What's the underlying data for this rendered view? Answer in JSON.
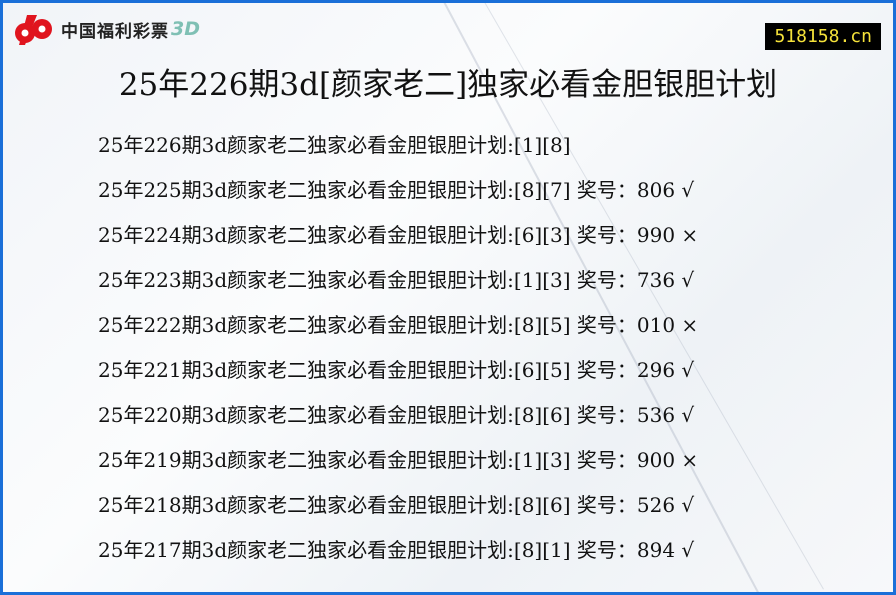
{
  "brand": {
    "logo_text": "中国福利彩票",
    "logo_suffix": "3D",
    "logo_color": "#e0141e"
  },
  "site": "518158.cn",
  "title": "25年226期3d[颜家老二]独家必看金胆银胆计划",
  "rows": [
    {
      "text": "25年226期3d颜家老二独家必看金胆银胆计划:[1][8]"
    },
    {
      "text": "25年225期3d颜家老二独家必看金胆银胆计划:[8][7] 奖号：806 √"
    },
    {
      "text": "25年224期3d颜家老二独家必看金胆银胆计划:[6][3] 奖号：990 ×"
    },
    {
      "text": "25年223期3d颜家老二独家必看金胆银胆计划:[1][3] 奖号：736 √"
    },
    {
      "text": "25年222期3d颜家老二独家必看金胆银胆计划:[8][5] 奖号：010 ×"
    },
    {
      "text": "25年221期3d颜家老二独家必看金胆银胆计划:[6][5] 奖号：296 √"
    },
    {
      "text": "25年220期3d颜家老二独家必看金胆银胆计划:[8][6] 奖号：536 √"
    },
    {
      "text": "25年219期3d颜家老二独家必看金胆银胆计划:[1][3] 奖号：900 ×"
    },
    {
      "text": "25年218期3d颜家老二独家必看金胆银胆计划:[8][6] 奖号：526 √"
    },
    {
      "text": "25年217期3d颜家老二独家必看金胆银胆计划:[8][1] 奖号：894 √"
    }
  ]
}
